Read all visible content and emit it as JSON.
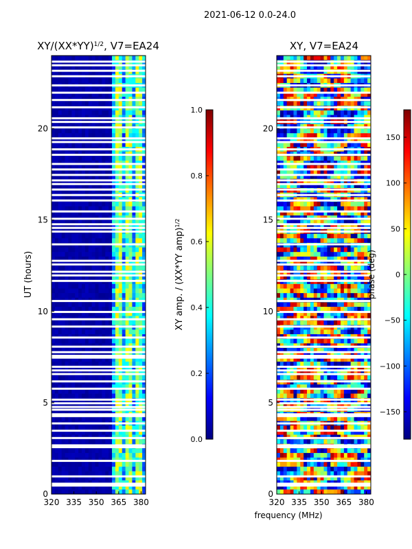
{
  "figure_title": "2021-06-12 0.0-24.0",
  "colors": {
    "jet": [
      "#00007f",
      "#0000ff",
      "#007fff",
      "#00ffff",
      "#7fff7f",
      "#ffff00",
      "#ff7f00",
      "#ff0000",
      "#7f0000"
    ],
    "gap": "#ffffff",
    "axis": "#000000"
  },
  "chart_data": [
    {
      "type": "heatmap",
      "title": "XY/(XX*YY)^{1/2}, V7=EA24",
      "title_main": "XY/(XX*YY)",
      "title_sup": "1/2",
      "title_tail": ", V7=EA24",
      "xlabel": "",
      "ylabel": "UT (hours)",
      "xlim": [
        320,
        383
      ],
      "ylim": [
        0,
        24
      ],
      "xticks": [
        320,
        335,
        350,
        365,
        380
      ],
      "yticks": [
        0,
        5,
        10,
        15,
        20
      ],
      "bands": [
        {
          "from": 320,
          "to": 360,
          "level": 0.02,
          "note": "near-zero amplitude"
        },
        {
          "from": 360,
          "to": 383,
          "level": 0.35,
          "note": "mixed 0.2-0.6 amplitude in striped channels"
        }
      ],
      "colorbar": {
        "label": "XY amp. / (XX*YY amp)^{1/2}",
        "label_main": "XY amp. / (XX*YY amp)",
        "label_sup": "1/2",
        "range": [
          0.0,
          1.0
        ],
        "ticks": [
          "0.0",
          "0.2",
          "0.4",
          "0.6",
          "0.8",
          "1.0"
        ],
        "tick_values": [
          0.0,
          0.2,
          0.4,
          0.6,
          0.8,
          1.0
        ]
      }
    },
    {
      "type": "heatmap",
      "title": "XY, V7=EA24",
      "xlabel": "frequency (MHz)",
      "ylabel": "",
      "xlim": [
        320,
        383
      ],
      "ylim": [
        0,
        24
      ],
      "xticks": [
        320,
        335,
        350,
        365,
        380
      ],
      "yticks": [
        0,
        5,
        10,
        15,
        20
      ],
      "colorbar": {
        "label": "phase (deg)",
        "range": [
          -180,
          180
        ],
        "ticks": [
          "150",
          "100",
          "50",
          "0",
          "−50",
          "−100",
          "−150"
        ],
        "tick_values": [
          150,
          100,
          50,
          0,
          -50,
          -100,
          -150
        ]
      }
    }
  ],
  "data_gaps_ut_hours": [
    0.45,
    0.55,
    0.95,
    1.8,
    2.55,
    2.65,
    3.05,
    3.45,
    3.85,
    4.25,
    4.35,
    4.6,
    4.75,
    4.95,
    5.15,
    5.75,
    6.15,
    6.55,
    6.75,
    6.95,
    7.45,
    7.55,
    7.75,
    8.05,
    8.55,
    9.15,
    9.55,
    9.95,
    10.55,
    11.65,
    11.95,
    12.15,
    12.55,
    12.75,
    13.65,
    14.35,
    14.55,
    14.75,
    15.05,
    15.45,
    16.05,
    16.35,
    16.65,
    16.95,
    17.15,
    17.45,
    17.75,
    18.05,
    18.55,
    18.85,
    19.25,
    19.45,
    20.05,
    20.35,
    20.55,
    21.15,
    21.55,
    21.95,
    22.35,
    22.85,
    23.15,
    23.45,
    23.65
  ]
}
